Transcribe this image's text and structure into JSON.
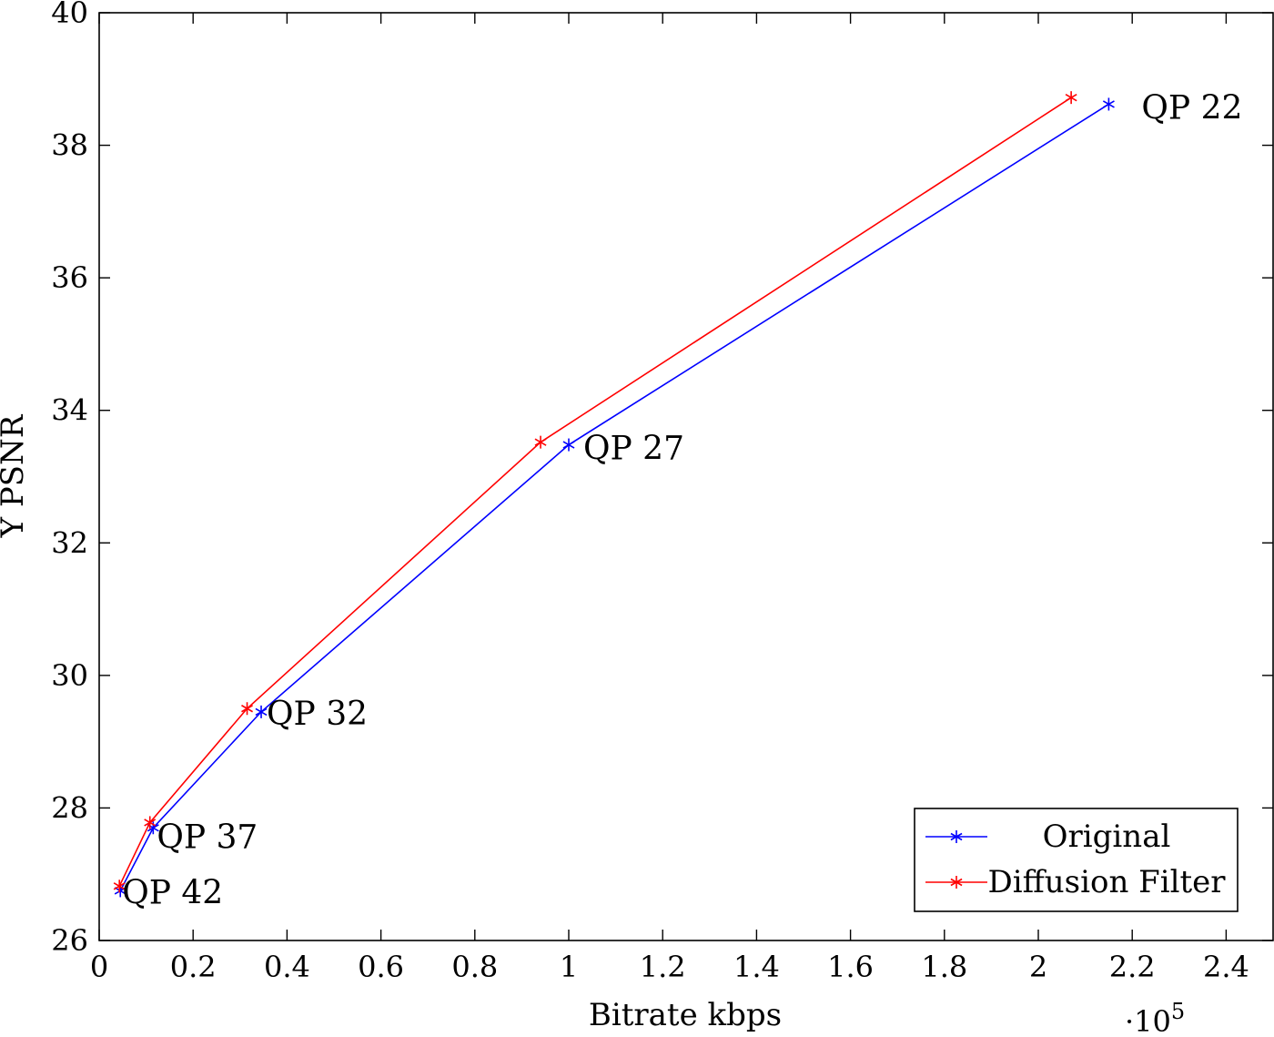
{
  "chart_data": {
    "type": "line",
    "title": "",
    "xlabel": "Bitrate kbps",
    "ylabel": "Y PSNR",
    "x_multiplier_label": "·10",
    "x_multiplier_exponent": "5",
    "xlim": [
      0,
      2.5
    ],
    "ylim": [
      26,
      40
    ],
    "xticks": [
      0,
      0.2,
      0.4,
      0.6,
      0.8,
      1,
      1.2,
      1.4,
      1.6,
      1.8,
      2,
      2.2,
      2.4
    ],
    "xtick_labels": [
      "0",
      "0.2",
      "0.4",
      "0.6",
      "0.8",
      "1",
      "1.2",
      "1.4",
      "1.6",
      "1.8",
      "2",
      "2.2",
      "2.4"
    ],
    "yticks": [
      26,
      28,
      30,
      32,
      34,
      36,
      38,
      40
    ],
    "ytick_labels": [
      "26",
      "28",
      "30",
      "32",
      "34",
      "36",
      "38",
      "40"
    ],
    "grid": false,
    "legend_position": "bottom-right",
    "series": [
      {
        "name": "Original",
        "color": "#0000ff",
        "marker": "asterisk",
        "x": [
          0.045,
          0.115,
          0.345,
          1.0,
          2.15
        ],
        "y": [
          26.75,
          27.7,
          29.45,
          33.48,
          38.62
        ]
      },
      {
        "name": "Diffusion Filter",
        "color": "#ff0000",
        "marker": "asterisk",
        "x": [
          0.043,
          0.108,
          0.315,
          0.94,
          2.07
        ],
        "y": [
          26.82,
          27.78,
          29.5,
          33.52,
          38.72
        ]
      }
    ],
    "annotations": [
      {
        "text": "QP 42",
        "x": 0.045,
        "y": 26.75
      },
      {
        "text": "QP 37",
        "x": 0.115,
        "y": 27.7
      },
      {
        "text": "QP 32",
        "x": 0.345,
        "y": 29.45
      },
      {
        "text": "QP 27",
        "x": 1.0,
        "y": 33.48
      },
      {
        "text": "QP 22",
        "x": 2.15,
        "y": 38.62
      }
    ]
  }
}
